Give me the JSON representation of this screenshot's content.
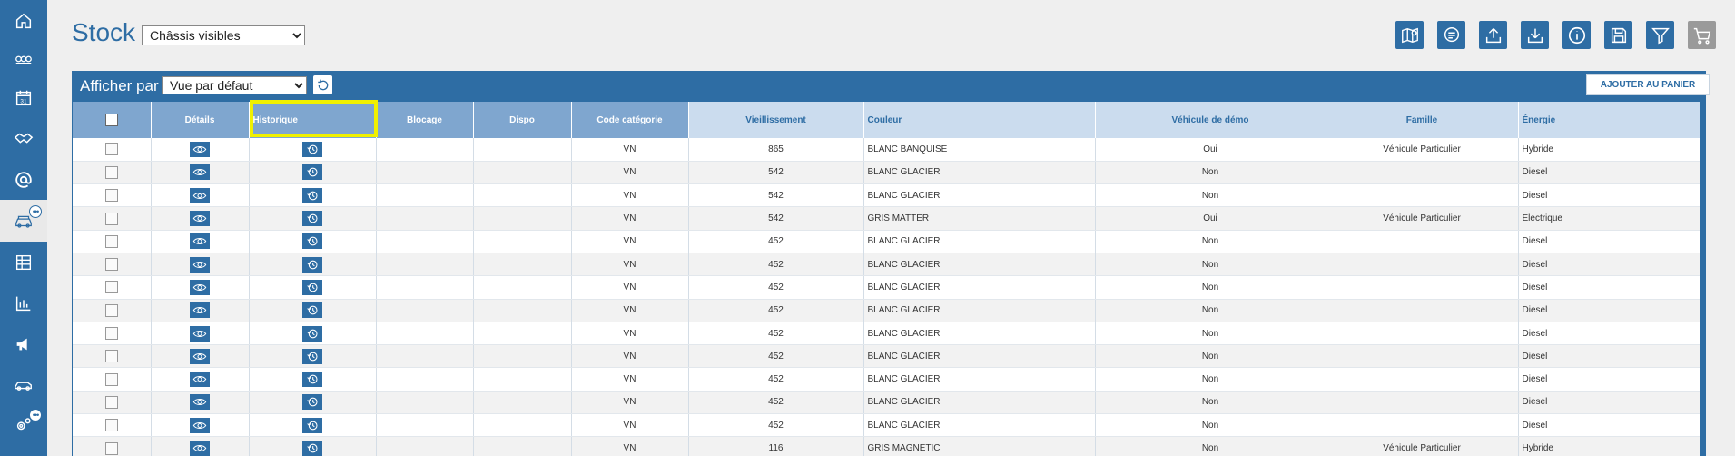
{
  "header": {
    "title": "Stock",
    "visibility_select": "Châssis visibles"
  },
  "sidebar": {
    "items": [
      {
        "name": "home-icon"
      },
      {
        "name": "handshake-group-icon"
      },
      {
        "name": "calendar-icon",
        "badge_text": "31"
      },
      {
        "name": "handshake-icon"
      },
      {
        "name": "at-icon"
      },
      {
        "name": "car-stock-icon",
        "active": true
      },
      {
        "name": "table-icon"
      },
      {
        "name": "bar-chart-icon"
      },
      {
        "name": "megaphone-icon"
      },
      {
        "name": "car-icon"
      },
      {
        "name": "settings-icon"
      }
    ]
  },
  "toolbar": {
    "icons": [
      "map-pin-icon",
      "comment-list-icon",
      "upload-icon",
      "download-icon",
      "info-icon",
      "save-icon",
      "filter-icon",
      "cart-icon"
    ]
  },
  "panel": {
    "display_by_label": "Afficher par",
    "view_select": "Vue par défaut",
    "add_to_cart_label": "AJOUTER AU PANIER"
  },
  "table": {
    "headers": {
      "details": "Détails",
      "history": "Historique",
      "block": "Blocage",
      "dispo": "Dispo",
      "category": "Code catégorie",
      "aging": "Vieillissement",
      "color": "Couleur",
      "demo": "Véhicule de démo",
      "family": "Famille",
      "energy": "Énergie"
    },
    "rows": [
      {
        "category": "VN",
        "aging": "865",
        "color": "BLANC BANQUISE",
        "demo": "Oui",
        "family": "Véhicule Particulier",
        "energy": "Hybride"
      },
      {
        "category": "VN",
        "aging": "542",
        "color": "BLANC GLACIER",
        "demo": "Non",
        "family": "",
        "energy": "Diesel"
      },
      {
        "category": "VN",
        "aging": "542",
        "color": "BLANC GLACIER",
        "demo": "Non",
        "family": "",
        "energy": "Diesel"
      },
      {
        "category": "VN",
        "aging": "542",
        "color": "GRIS MATTER",
        "demo": "Oui",
        "family": "Véhicule Particulier",
        "energy": "Electrique"
      },
      {
        "category": "VN",
        "aging": "452",
        "color": "BLANC GLACIER",
        "demo": "Non",
        "family": "",
        "energy": "Diesel"
      },
      {
        "category": "VN",
        "aging": "452",
        "color": "BLANC GLACIER",
        "demo": "Non",
        "family": "",
        "energy": "Diesel"
      },
      {
        "category": "VN",
        "aging": "452",
        "color": "BLANC GLACIER",
        "demo": "Non",
        "family": "",
        "energy": "Diesel"
      },
      {
        "category": "VN",
        "aging": "452",
        "color": "BLANC GLACIER",
        "demo": "Non",
        "family": "",
        "energy": "Diesel"
      },
      {
        "category": "VN",
        "aging": "452",
        "color": "BLANC GLACIER",
        "demo": "Non",
        "family": "",
        "energy": "Diesel"
      },
      {
        "category": "VN",
        "aging": "452",
        "color": "BLANC GLACIER",
        "demo": "Non",
        "family": "",
        "energy": "Diesel"
      },
      {
        "category": "VN",
        "aging": "452",
        "color": "BLANC GLACIER",
        "demo": "Non",
        "family": "",
        "energy": "Diesel"
      },
      {
        "category": "VN",
        "aging": "452",
        "color": "BLANC GLACIER",
        "demo": "Non",
        "family": "",
        "energy": "Diesel"
      },
      {
        "category": "VN",
        "aging": "452",
        "color": "BLANC GLACIER",
        "demo": "Non",
        "family": "",
        "energy": "Diesel"
      },
      {
        "category": "VN",
        "aging": "116",
        "color": "GRIS MAGNETIC",
        "demo": "Non",
        "family": "Véhicule Particulier",
        "energy": "Hybride"
      }
    ]
  },
  "colors": {
    "primary": "#2e6da4",
    "header_dark": "#7fa6cf",
    "header_light": "#cbdcee",
    "highlight": "#f0f000"
  }
}
